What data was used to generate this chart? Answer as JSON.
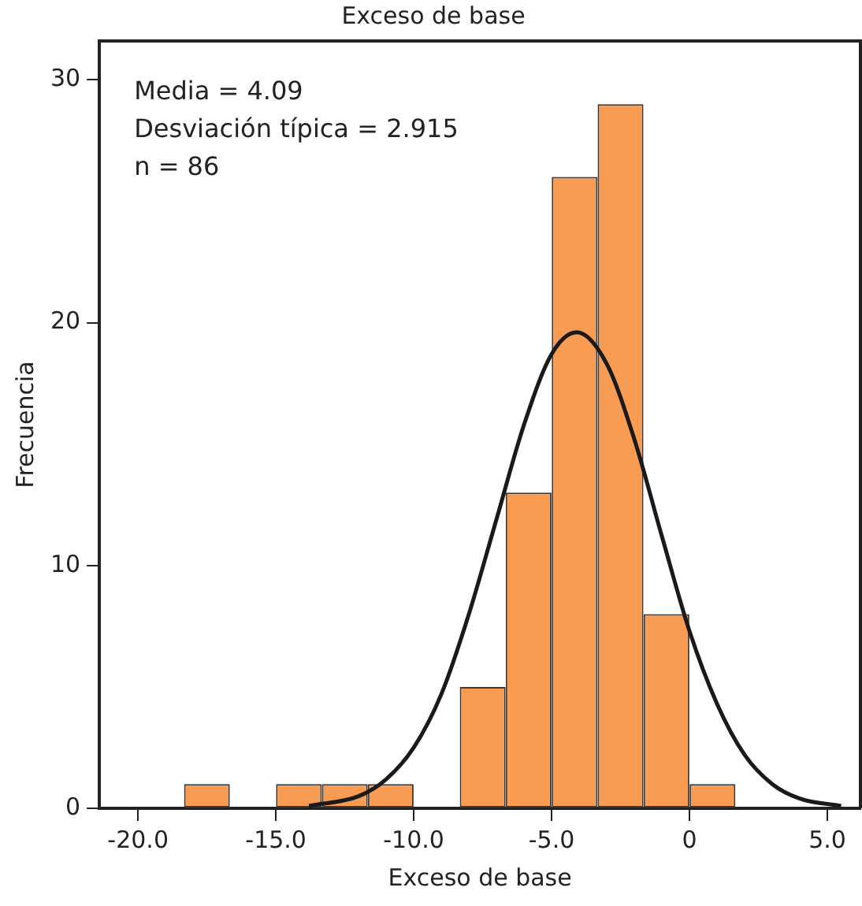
{
  "chart_data": {
    "type": "histogram",
    "title": "Exceso de base",
    "xlabel": "Exceso de base",
    "ylabel": "Frecuencia",
    "annotations": [
      "Media = 4.09",
      "Desviación típica = 2.915",
      "n = 86"
    ],
    "series": [
      {
        "type": "histogram",
        "color": "#f89c54",
        "bins": [
          -18.33,
          -16.67,
          -15,
          -13.33,
          -11.67,
          -10,
          -8.33,
          -6.67,
          -5,
          -3.33,
          -1.67,
          0,
          1.67
        ],
        "values": [
          1,
          0,
          1,
          1,
          1,
          0,
          5,
          13,
          26,
          29,
          8,
          1
        ]
      },
      {
        "type": "line",
        "color": "#1a1a1a",
        "x": [
          -13.8,
          -12,
          -11,
          -10,
          -9,
          -8,
          -7,
          -6,
          -5,
          -4.09,
          -3,
          -2,
          -1,
          0,
          1,
          2,
          3,
          4,
          5.5
        ],
        "values": [
          0.1,
          0.5,
          1.2,
          2.5,
          4.7,
          8.0,
          11.9,
          15.8,
          18.7,
          19.6,
          18.3,
          15.2,
          11.2,
          7.3,
          4.3,
          2.2,
          1.0,
          0.4,
          0.1
        ]
      }
    ],
    "xlim": [
      -21.4,
      6.2
    ],
    "ylim": [
      0,
      31.6
    ],
    "xticks": [
      {
        "value": -20,
        "label": "-20.0"
      },
      {
        "value": -15,
        "label": "-15.0"
      },
      {
        "value": -10,
        "label": "-10.0"
      },
      {
        "value": -5,
        "label": "-5.0"
      },
      0,
      {
        "value": 5,
        "label": "5.0"
      }
    ],
    "yticks": [
      0,
      10,
      20,
      30
    ],
    "grid": false,
    "legend": false,
    "marker": "none",
    "line_style": "solid"
  }
}
